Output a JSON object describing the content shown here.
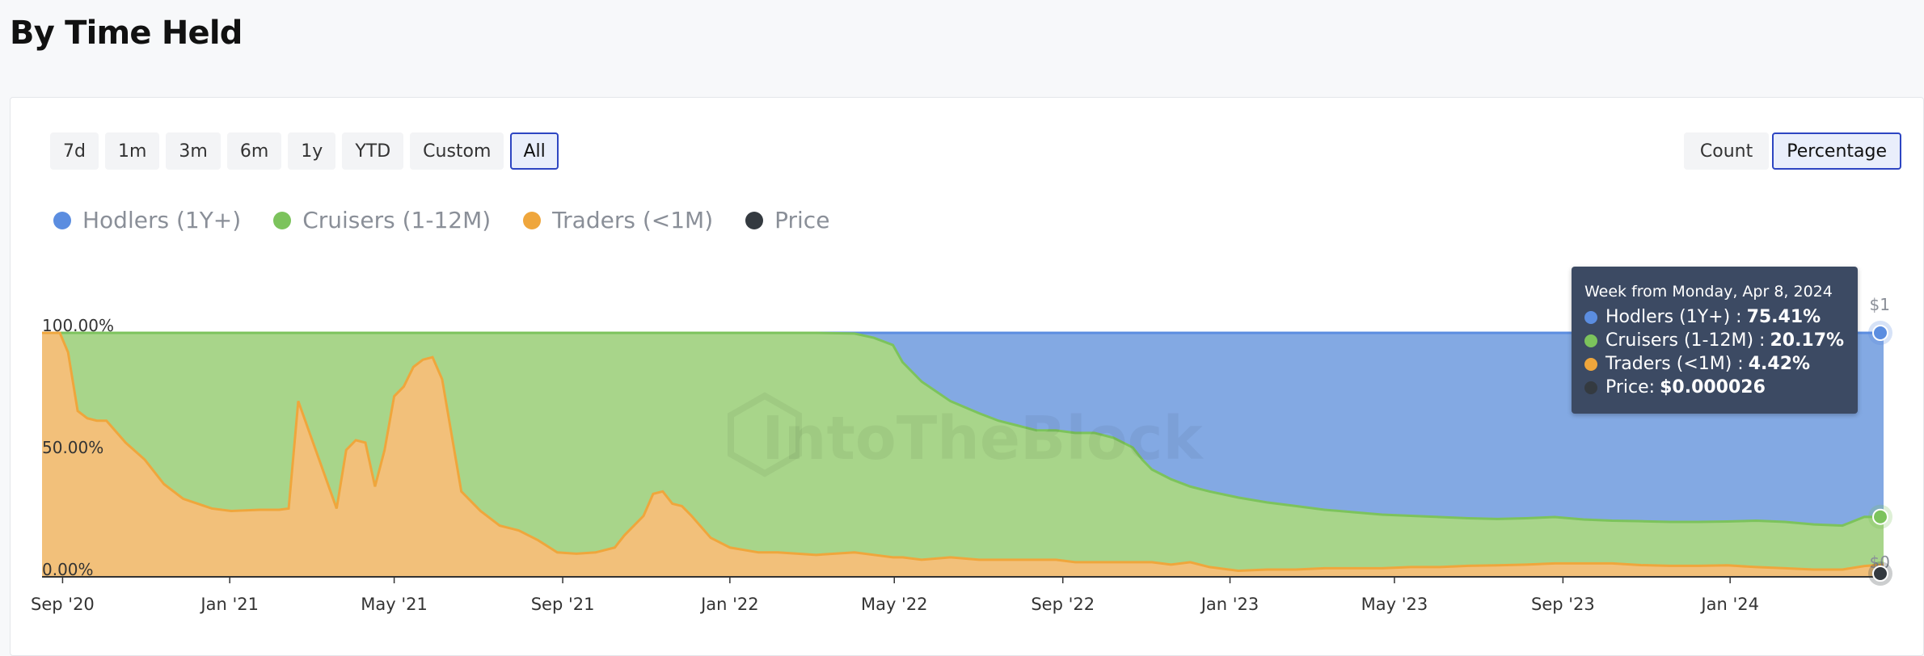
{
  "page": {
    "title": "By Time Held",
    "range_buttons": [
      "7d",
      "1m",
      "3m",
      "6m",
      "1y",
      "YTD",
      "Custom",
      "All"
    ],
    "range_selected": "All",
    "mode_buttons": [
      "Count",
      "Percentage"
    ],
    "mode_selected": "Percentage",
    "watermark": "IntoTheBlock",
    "tooltip": {
      "header": "Week from Monday, Apr 8, 2024",
      "rows": [
        {
          "label": "Hodlers (1Y+) :",
          "value": "75.41%",
          "color": "#5b8de0"
        },
        {
          "label": "Cruisers (1-12M) :",
          "value": "20.17%",
          "color": "#7cc35c"
        },
        {
          "label": "Traders (<1M) :",
          "value": "4.42%",
          "color": "#efa63c"
        },
        {
          "label": "Price:",
          "value": "$0.000026",
          "color": "#343a40"
        }
      ]
    }
  },
  "chart_data": {
    "type": "area",
    "stacked": true,
    "x_tick_labels": [
      "Sep '20",
      "Jan '21",
      "May '21",
      "Sep '21",
      "Jan '22",
      "May '22",
      "Sep '22",
      "Jan '23",
      "May '23",
      "Sep '23",
      "Jan '24"
    ],
    "x_tick_dates": [
      "2020-09-01",
      "2021-01-01",
      "2021-05-01",
      "2021-09-01",
      "2022-01-01",
      "2022-05-01",
      "2022-09-01",
      "2023-01-01",
      "2023-05-01",
      "2023-09-01",
      "2024-01-01"
    ],
    "x_range": [
      "2020-08-17",
      "2024-04-22"
    ],
    "y_left_ticks": [
      "100.00%",
      "50.00%",
      "0.00%"
    ],
    "y_left_range": [
      0,
      100
    ],
    "y_right_ticks": [
      "$1",
      "$0"
    ],
    "unit": "%",
    "legend": [
      {
        "name": "Hodlers (1Y+)",
        "color": "#5b8de0"
      },
      {
        "name": "Cruisers (1-12M)",
        "color": "#7cc35c"
      },
      {
        "name": "Traders (<1M)",
        "color": "#efa63c"
      },
      {
        "name": "Price",
        "color": "#343a40"
      }
    ],
    "x_dates": [
      "2020-08-17",
      "2020-08-30",
      "2020-09-05",
      "2020-09-12",
      "2020-09-19",
      "2020-09-26",
      "2020-10-03",
      "2020-10-17",
      "2020-10-31",
      "2020-11-14",
      "2020-11-28",
      "2020-12-19",
      "2021-01-02",
      "2021-01-23",
      "2021-02-06",
      "2021-02-13",
      "2021-02-20",
      "2021-03-20",
      "2021-03-27",
      "2021-04-03",
      "2021-04-10",
      "2021-04-17",
      "2021-04-24",
      "2021-05-01",
      "2021-05-08",
      "2021-05-15",
      "2021-05-22",
      "2021-05-29",
      "2021-06-05",
      "2021-06-19",
      "2021-07-03",
      "2021-07-17",
      "2021-07-31",
      "2021-08-14",
      "2021-08-28",
      "2021-09-11",
      "2021-09-25",
      "2021-10-09",
      "2021-10-16",
      "2021-10-30",
      "2021-11-06",
      "2021-11-13",
      "2021-11-20",
      "2021-11-27",
      "2021-12-04",
      "2021-12-18",
      "2022-01-01",
      "2022-01-22",
      "2022-02-05",
      "2022-03-05",
      "2022-04-02",
      "2022-04-16",
      "2022-04-30",
      "2022-05-07",
      "2022-05-21",
      "2022-06-11",
      "2022-07-02",
      "2022-07-16",
      "2022-07-30",
      "2022-08-13",
      "2022-08-27",
      "2022-09-10",
      "2022-09-24",
      "2022-10-08",
      "2022-10-22",
      "2022-10-29",
      "2022-11-05",
      "2022-11-19",
      "2022-12-03",
      "2022-12-17",
      "2023-01-07",
      "2023-01-28",
      "2023-02-18",
      "2023-03-11",
      "2023-04-01",
      "2023-04-22",
      "2023-05-13",
      "2023-06-03",
      "2023-06-24",
      "2023-07-15",
      "2023-08-05",
      "2023-08-26",
      "2023-09-16",
      "2023-10-07",
      "2023-10-28",
      "2023-11-18",
      "2023-12-09",
      "2023-12-30",
      "2024-01-20",
      "2024-02-10",
      "2024-03-02",
      "2024-03-23",
      "2024-04-08",
      "2024-04-22"
    ],
    "series": [
      {
        "name": "Hodlers (1Y+)",
        "values": [
          0,
          0,
          0,
          0,
          0,
          0,
          0,
          0,
          0,
          0,
          0,
          0,
          0,
          0,
          0,
          0,
          0,
          0,
          0,
          0,
          0,
          0,
          0,
          0,
          0,
          0,
          0,
          0,
          0,
          0,
          0,
          0,
          0,
          0,
          0,
          0,
          0,
          0,
          0,
          0,
          0,
          0,
          0,
          0,
          0,
          0,
          0,
          0,
          0,
          0,
          0.3,
          2,
          5,
          12,
          20,
          28,
          33,
          36,
          38,
          40,
          40,
          41,
          41,
          43,
          47,
          52,
          56,
          60,
          63,
          65,
          67.5,
          69.5,
          71,
          72.5,
          73.5,
          74.5,
          75,
          75.5,
          76,
          76.3,
          76,
          75.5,
          76.5,
          77,
          77.2,
          77.5,
          77.5,
          77.3,
          77,
          77.5,
          78.5,
          79,
          75.41,
          75.5
        ]
      },
      {
        "name": "Cruisers (1-12M)",
        "values": [
          0,
          0,
          8,
          32,
          35,
          36,
          36,
          45,
          52,
          62,
          68,
          72,
          73,
          72.5,
          72.5,
          72,
          28,
          72,
          48,
          44,
          45,
          63,
          48,
          26,
          22,
          14,
          11,
          10,
          19,
          65,
          73,
          79,
          81,
          85,
          90,
          90.5,
          90,
          88,
          83,
          75,
          66,
          65,
          70,
          71,
          75,
          84,
          88,
          90,
          90,
          91,
          89.7,
          89,
          87,
          80,
          73,
          64,
          60,
          57,
          55,
          53,
          53,
          53,
          53,
          51,
          47,
          42,
          38,
          35,
          31,
          31,
          30,
          27.5,
          26,
          24,
          23,
          22,
          21,
          20.5,
          19.5,
          19,
          19,
          19,
          18,
          17.5,
          18,
          18,
          18,
          18,
          19,
          19,
          18.5,
          18,
          20.17,
          19.5
        ]
      },
      {
        "name": "Traders (<1M)",
        "values": [
          100,
          100,
          92,
          68,
          65,
          64,
          64,
          55,
          48,
          38,
          32,
          28,
          27,
          27.5,
          27.5,
          28,
          72,
          28,
          52,
          56,
          55,
          37,
          52,
          74,
          78,
          86,
          89,
          90,
          81,
          35,
          27,
          21,
          19,
          15,
          10,
          9.5,
          10,
          12,
          17,
          25,
          34,
          35,
          30,
          29,
          25,
          16,
          12,
          10,
          10,
          9,
          10,
          9,
          8,
          8,
          7,
          8,
          7,
          7,
          7,
          7,
          7,
          6,
          6,
          6,
          6,
          6,
          6,
          5,
          6,
          4,
          2.5,
          3,
          3,
          3.5,
          3.5,
          3.5,
          4,
          4,
          4.5,
          4.7,
          5,
          5.5,
          5.5,
          5.5,
          4.8,
          4.5,
          4.5,
          4.7,
          4,
          3.5,
          3,
          3,
          4.42,
          5
        ]
      }
    ],
    "price_series": {
      "name": "Price",
      "current_value": "$0.000026"
    }
  }
}
